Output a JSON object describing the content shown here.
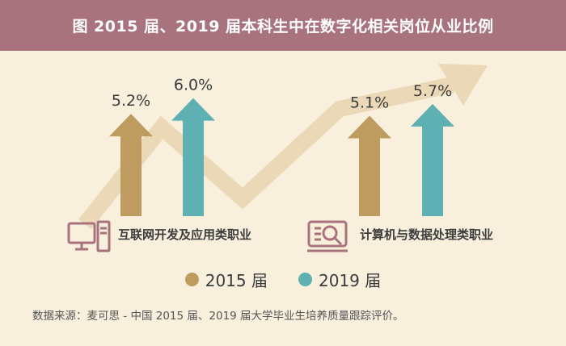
{
  "header": {
    "title": "图  2015 届、2019 届本科生中在数字化相关岗位从业比例"
  },
  "colors": {
    "header_bg": "#a8737c",
    "background": "#f8efdd",
    "s2015": "#be9b5e",
    "s2019": "#5fb0b2",
    "trend": "#ead8b7",
    "icon": "#a8737c",
    "label": "#3c3c3c"
  },
  "chart_data": {
    "type": "bar",
    "title": "图  2015 届、2019 届本科生中在数字化相关岗位从业比例",
    "categories": [
      "互联网开发及应用类职业",
      "计算机与数据处理类职业"
    ],
    "series": [
      {
        "name": "2015 届",
        "values": [
          5.2,
          5.1
        ],
        "labels": [
          "5.2%",
          "5.1%"
        ]
      },
      {
        "name": "2019 届",
        "values": [
          6.0,
          5.7
        ],
        "labels": [
          "6.0%",
          "5.7%"
        ]
      }
    ],
    "ylim": [
      0,
      6.5
    ],
    "xlabel": "",
    "ylabel": ""
  },
  "icons": [
    "computer-icon",
    "document-search-icon"
  ],
  "legend": [
    {
      "label": "2015 届",
      "color": "#be9b5e"
    },
    {
      "label": "2019 届",
      "color": "#5fb0b2"
    }
  ],
  "source": "数据来源：麦可思 - 中国 2015 届、2019 届大学毕业生培养质量跟踪评价。"
}
